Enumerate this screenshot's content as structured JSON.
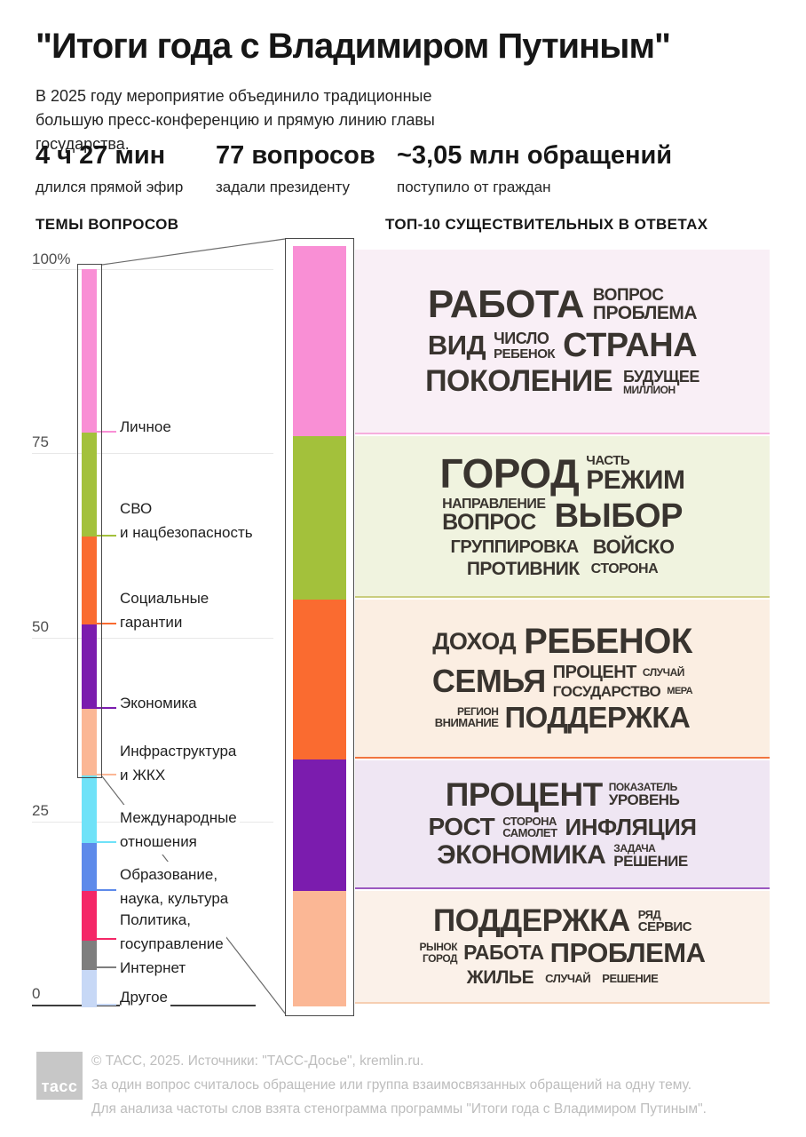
{
  "header": {
    "title": "\"Итоги года с Владимиром Путиным\"",
    "subtitle": "В 2025 году мероприятие объединило традиционные большую пресс-конференцию и прямую линию главы государства.",
    "stats": [
      {
        "value": "4 ч 27 мин",
        "caption": "длился прямой эфир"
      },
      {
        "value": "77 вопросов",
        "caption": "задали президенту"
      },
      {
        "value": "~3,05 млн обращений",
        "caption": "поступило от граждан"
      }
    ]
  },
  "sections": {
    "topics_heading": "ТЕМЫ ВОПРОСОВ",
    "nouns_heading": "ТОП-10 СУЩЕСТВИТЕЛЬНЫХ В ОТВЕТАХ"
  },
  "left_chart": {
    "axis_ticks": [
      "100%",
      "75",
      "50",
      "25",
      "0"
    ],
    "labels": [
      "Личное",
      "СВО\nи нацбезопасность",
      "Социальные\nгарантии",
      "Экономика",
      "Инфраструктура\nи ЖКХ",
      "Международные\nотношения",
      "Образование,\nнаука, культура",
      "Политика,\nгосуправление",
      "Интернет",
      "Другое"
    ]
  },
  "chart_data": [
    {
      "type": "bar",
      "subtype": "stacked-percentage-column",
      "title": "ТЕМЫ ВОПРОСОВ",
      "categories": [
        "Личное",
        "СВО и нацбезопасность",
        "Социальные гарантии",
        "Экономика",
        "Инфраструктура и ЖКХ",
        "Международные отношения",
        "Образование, наука, культура",
        "Политика, госуправление",
        "Интернет",
        "Другое"
      ],
      "values": [
        22.2,
        14.1,
        11.9,
        11.4,
        9.0,
        9.2,
        6.5,
        6.7,
        4.0,
        5.0
      ],
      "unit": "%",
      "ylim": [
        0,
        100
      ],
      "axis_ticks": [
        "100%",
        "75",
        "50",
        "25",
        "0"
      ],
      "colors": [
        "#F98FD5",
        "#A3C13B",
        "#FA6B30",
        "#7B1CAE",
        "#FBB795",
        "#6FE2F8",
        "#5D8AEA",
        "#F42767",
        "#7E7E7E",
        "#C7D8F6"
      ],
      "note": "top 5 segments are magnified into the detail column linked to word-cloud panels"
    },
    {
      "type": "wordcloud-panels",
      "title": "ТОП-10 СУЩЕСТВИТЕЛЬНЫХ В ОТВЕТАХ",
      "panels": [
        {
          "topic": "Личное",
          "bg": "#F9EFF6",
          "accent": "#F6AEDD",
          "words": [
            "РАБОТА",
            "ВОПРОС",
            "ПРОБЛЕМА",
            "ВИД",
            "ЧИСЛО",
            "РЕБЕНОК",
            "СТРАНА",
            "ПОКОЛЕНИЕ",
            "БУДУЩЕЕ",
            "МИЛЛИОН"
          ]
        },
        {
          "topic": "СВО и нацбезопасность",
          "bg": "#F0F3DF",
          "accent": "#C9CC7E",
          "words": [
            "ГОРОД",
            "ЧАСТЬ",
            "РЕЖИМ",
            "НАПРАВЛЕНИЕ",
            "ВОПРОС",
            "ВЫБОР",
            "ГРУППИРОВКА",
            "ВОЙСКО",
            "ПРОТИВНИК",
            "СТОРОНА"
          ]
        },
        {
          "topic": "Социальные гарантии",
          "bg": "#FBEEE2",
          "accent": "#F1743F",
          "words": [
            "ДОХОД",
            "РЕБЕНОК",
            "СЕМЬЯ",
            "ПРОЦЕНТ",
            "СЛУЧАЙ",
            "ГОСУДАРСТВО",
            "МЕРА",
            "РЕГИОН",
            "ВНИМАНИЕ",
            "ПОДДЕРЖКА"
          ]
        },
        {
          "topic": "Экономика",
          "bg": "#EFE6F3",
          "accent": "#9C59C0",
          "words": [
            "ПРОЦЕНТ",
            "ПОКАЗАТЕЛЬ",
            "УРОВЕНЬ",
            "РОСТ",
            "СТОРОНА",
            "САМОЛЕТ",
            "ИНФЛЯЦИЯ",
            "ЭКОНОМИКА",
            "ЗАДАЧА",
            "РЕШЕНИЕ"
          ]
        },
        {
          "topic": "Инфраструктура и ЖКХ",
          "bg": "#FBF1E9",
          "accent": "#F6CEB2",
          "words": [
            "ПОДДЕРЖКА",
            "РЯД",
            "СЕРВИС",
            "РЫНОК",
            "ГОРОД",
            "РАБОТА",
            "ПРОБЛЕМА",
            "ЖИЛЬЕ",
            "СЛУЧАЙ",
            "РЕШЕНИЕ"
          ]
        }
      ]
    }
  ],
  "footer": {
    "logo_text": "тасс",
    "line1": "© ТАСС, 2025. Источники: \"ТАСС-Досье\", kremlin.ru.",
    "line2": "За один вопрос считалось обращение или группа взаимосвязанных обращений на одну тему.",
    "line3": "Для анализа частоты слов взята стенограмма программы \"Итоги года с Владимиром Путиным\"."
  }
}
